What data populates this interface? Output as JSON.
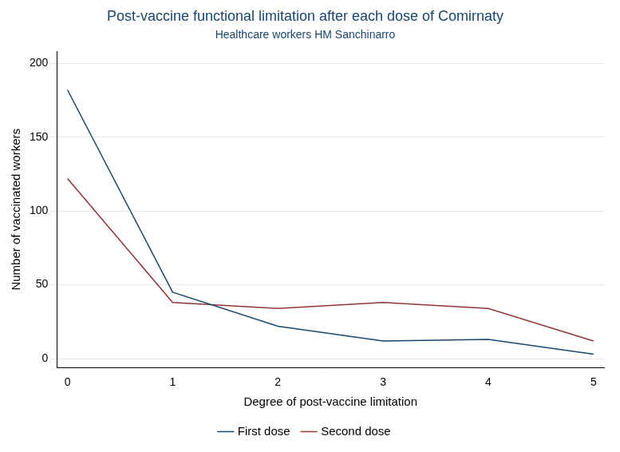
{
  "chart_data": {
    "type": "line",
    "title": "Post-vaccine functional limitation after each dose of Comirnaty",
    "subtitle": "Healthcare workers HM Sanchinarro",
    "x_label": "Degree of post-vaccine limitation",
    "y_label": "Number of vaccinated workers",
    "x": [
      0,
      1,
      2,
      3,
      4,
      5
    ],
    "series": [
      {
        "name": "First dose",
        "color": "#1a476f",
        "values": [
          182,
          45,
          22,
          12,
          13,
          3
        ]
      },
      {
        "name": "Second dose",
        "color": "#90353b",
        "values": [
          122,
          38,
          34,
          38,
          34,
          12
        ]
      }
    ],
    "xlim": [
      -0.1,
      5.1
    ],
    "xticks": [
      0,
      1,
      2,
      3,
      4,
      5
    ],
    "ylim": [
      -6,
      208
    ],
    "yticks": [
      0,
      50,
      100,
      150,
      200
    ],
    "grid": true,
    "legend": "bottom"
  }
}
